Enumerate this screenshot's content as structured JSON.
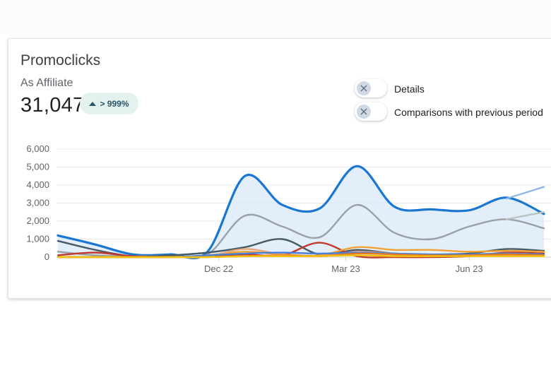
{
  "card": {
    "title": "Promoclicks",
    "subtitle": "As Affiliate",
    "total": "31,047",
    "badge": "> 999%"
  },
  "toggles": [
    {
      "label": "Details",
      "on": false,
      "icon": "close-icon"
    },
    {
      "label": "Comparisons with previous period",
      "on": false,
      "icon": "close-icon"
    }
  ],
  "colors": {
    "primary": "#1976d2",
    "primary_fill": "#dbeaf8",
    "badge_bg": "#e4f2ef",
    "badge_text": "#27556b"
  },
  "chart_data": {
    "type": "area",
    "ylim": [
      0,
      6000
    ],
    "yticks": [
      "0",
      "1,000",
      "2,000",
      "3,000",
      "4,000",
      "5,000",
      "6,000"
    ],
    "xtick_labels": [
      "Dec 22",
      "Mar 23",
      "Jun 23"
    ],
    "grid": true,
    "legend": "none",
    "series": [
      {
        "color": "#1976d2",
        "filled": true,
        "values": [
          1200,
          700,
          150,
          150,
          300,
          4500,
          2900,
          2700,
          5050,
          2800,
          2650,
          2600,
          3300,
          2400
        ]
      },
      {
        "color": "#8fb8e3",
        "values": [
          null,
          null,
          null,
          null,
          null,
          null,
          null,
          null,
          null,
          null,
          null,
          null,
          3250,
          3900
        ]
      },
      {
        "color": "#9aa0a6",
        "values": [
          300,
          100,
          50,
          80,
          150,
          2300,
          1700,
          1100,
          2900,
          1350,
          1000,
          1700,
          2100,
          1600
        ]
      },
      {
        "color": "#bcc1c6",
        "values": [
          null,
          null,
          null,
          null,
          null,
          null,
          null,
          null,
          null,
          null,
          null,
          null,
          2100,
          2500
        ]
      },
      {
        "color": "#455a64",
        "values": [
          900,
          400,
          50,
          100,
          250,
          550,
          1000,
          150,
          400,
          200,
          150,
          200,
          450,
          350
        ]
      },
      {
        "color": "#c0392b",
        "values": [
          100,
          250,
          50,
          0,
          50,
          150,
          100,
          800,
          50,
          0,
          0,
          50,
          250,
          200
        ]
      },
      {
        "color": "#f1a233",
        "values": [
          0,
          0,
          0,
          0,
          100,
          300,
          150,
          100,
          550,
          400,
          400,
          300,
          350,
          300
        ]
      },
      {
        "color": "#e8a87c",
        "values": [
          0,
          0,
          0,
          0,
          50,
          450,
          150,
          50,
          300,
          200,
          100,
          150,
          200,
          150
        ]
      },
      {
        "color": "#4a7fd6",
        "values": [
          0,
          0,
          0,
          0,
          100,
          200,
          250,
          200,
          250,
          200,
          150,
          150,
          200,
          150
        ]
      },
      {
        "color": "#e57c1f",
        "values": [
          0,
          0,
          0,
          0,
          0,
          50,
          100,
          50,
          200,
          150,
          100,
          100,
          150,
          100
        ]
      },
      {
        "color": "#f4c20d",
        "values": [
          0,
          0,
          0,
          0,
          0,
          50,
          50,
          50,
          100,
          50,
          50,
          50,
          50,
          50
        ]
      }
    ]
  }
}
